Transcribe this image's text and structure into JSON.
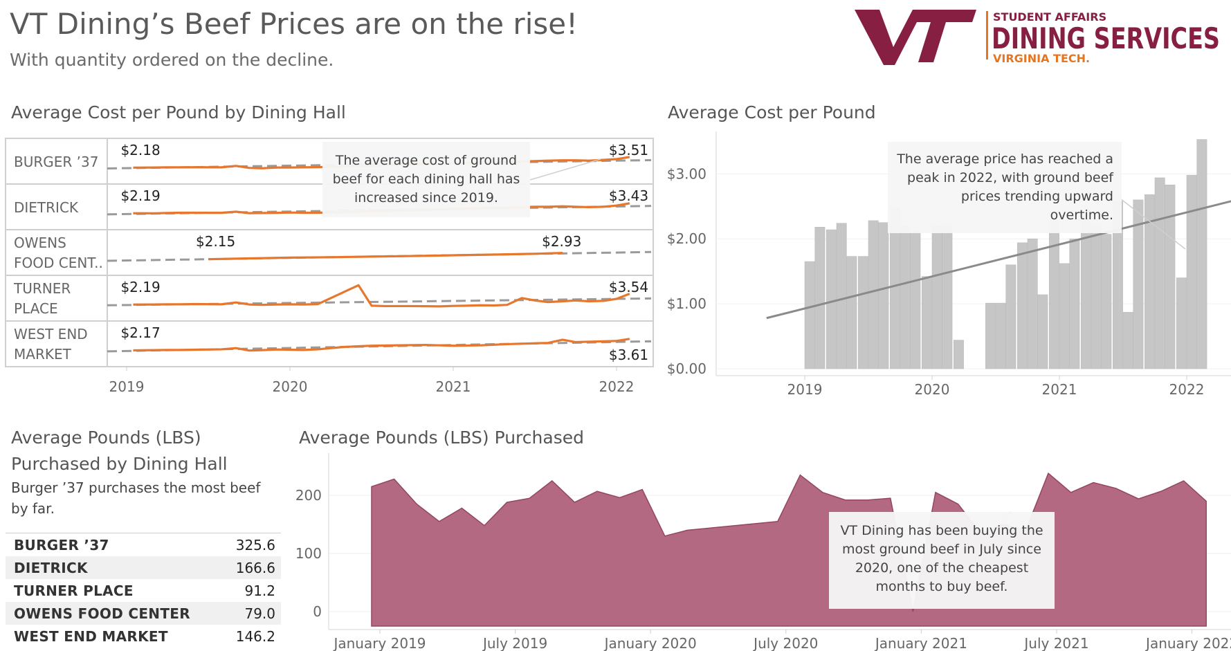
{
  "header": {
    "title": "VT Dining’s Beef Prices are on the rise!",
    "subtitle": "With quantity ordered on the decline.",
    "logo_small": "STUDENT AFFAIRS",
    "logo_big": "DINING SERVICES",
    "logo_sub": "VIRGINIA TECH."
  },
  "colors": {
    "orange": "#e8772e",
    "maroon": "#a54f6b",
    "logo": "#861f41",
    "bar": "#c6c6c6",
    "logo_rule": "#e5751f"
  },
  "panels": {
    "hall_cost_title": "Average Cost per Pound by Dining Hall",
    "cost_title": "Average Cost per Pound",
    "lbs_hall_title_1": "Average Pounds (LBS)",
    "lbs_hall_title_2": "Purchased by Dining Hall",
    "lbs_hall_subtitle_1": "Burger ’37 purchases the most beef",
    "lbs_hall_subtitle_2": "by far.",
    "lbs_title": "Average Pounds (LBS) Purchased"
  },
  "annotations": {
    "hall_note": [
      "The average cost of ground",
      "beef for each dining hall has",
      "increased since 2019."
    ],
    "cost_note": [
      "The average price has reached a",
      "peak in 2022, with ground beef",
      "prices trending upward",
      "overtime."
    ],
    "lbs_note": [
      "VT Dining has been buying the",
      "most ground beef in July since",
      "2020, one of the cheapest",
      "months to buy beef."
    ]
  },
  "chart_data": [
    {
      "type": "line",
      "title": "Average Cost per Pound by Dining Hall",
      "x_ticks": [
        "2019",
        "2020",
        "2021",
        "2022"
      ],
      "series": [
        {
          "name": "BURGER ’37",
          "row_label": [
            "BURGER ’37"
          ],
          "start_label": "$2.18",
          "end_label": "$3.51",
          "x": [
            2019.04,
            2019.17,
            2019.25,
            2019.33,
            2019.42,
            2019.58,
            2019.67,
            2019.75,
            2019.83,
            2019.92,
            2020.0,
            2020.08,
            2020.17,
            2021.42,
            2021.5,
            2021.58,
            2021.67,
            2021.75,
            2021.83,
            2021.92,
            2022.0,
            2022.08
          ],
          "y": [
            2.18,
            2.2,
            2.22,
            2.22,
            2.23,
            2.22,
            2.4,
            2.15,
            2.1,
            2.2,
            2.2,
            2.22,
            2.24,
            2.95,
            3.0,
            3.05,
            3.1,
            3.1,
            3.05,
            3.15,
            3.25,
            3.51
          ],
          "trend": [
            2.08,
            3.12
          ]
        },
        {
          "name": "DIETRICK",
          "row_label": [
            "DIETRICK"
          ],
          "start_label": "$2.19",
          "end_label": "$3.43",
          "x": [
            2019.04,
            2019.17,
            2019.25,
            2019.33,
            2019.42,
            2019.58,
            2019.67,
            2019.75,
            2019.83,
            2019.92,
            2020.0,
            2020.08,
            2020.17,
            2021.42,
            2021.5,
            2021.58,
            2021.67,
            2021.75,
            2021.83,
            2021.92,
            2022.0,
            2022.08
          ],
          "y": [
            2.19,
            2.18,
            2.22,
            2.25,
            2.25,
            2.24,
            2.38,
            2.2,
            2.22,
            2.24,
            2.28,
            2.25,
            2.25,
            2.95,
            3.0,
            3.0,
            3.05,
            3.0,
            2.95,
            3.0,
            3.15,
            3.43
          ],
          "trend": [
            2.05,
            3.1
          ]
        },
        {
          "name": "OWENS FOOD CENTER",
          "row_label": [
            "OWENS",
            "FOOD CENT.."
          ],
          "start_label": "$2.15",
          "end_label": "$2.93",
          "x": [
            2019.5,
            2019.75,
            2020.0,
            2020.25,
            2020.5,
            2020.75,
            2021.0,
            2021.25,
            2021.5,
            2021.67
          ],
          "y": [
            2.15,
            2.25,
            2.35,
            2.4,
            2.48,
            2.55,
            2.64,
            2.73,
            2.83,
            2.93
          ],
          "trend": [
            1.95,
            3.05
          ]
        },
        {
          "name": "TURNER PLACE",
          "row_label": [
            "TURNER",
            "PLACE"
          ],
          "start_label": "$2.19",
          "end_label": "$3.54",
          "x": [
            2019.04,
            2019.17,
            2019.25,
            2019.33,
            2019.42,
            2019.58,
            2019.67,
            2019.75,
            2019.83,
            2019.92,
            2020.0,
            2020.08,
            2020.17,
            2020.42,
            2020.5,
            2020.58,
            2020.67,
            2020.75,
            2020.83,
            2020.92,
            2021.0,
            2021.08,
            2021.17,
            2021.25,
            2021.33,
            2021.42,
            2021.5,
            2021.58,
            2021.67,
            2021.75,
            2021.83,
            2021.92,
            2022.0,
            2022.08
          ],
          "y": [
            2.19,
            2.2,
            2.22,
            2.22,
            2.25,
            2.22,
            2.45,
            2.2,
            2.15,
            2.2,
            2.22,
            2.2,
            2.24,
            4.6,
            2.05,
            2.0,
            2.0,
            2.0,
            1.98,
            1.96,
            2.02,
            2.05,
            2.1,
            2.08,
            2.15,
            3.0,
            2.7,
            2.5,
            2.6,
            2.7,
            2.6,
            2.65,
            2.9,
            3.54
          ],
          "trend": [
            2.1,
            2.95
          ]
        },
        {
          "name": "WEST END MARKET",
          "row_label": [
            "WEST END",
            "MARKET"
          ],
          "start_label": "$2.17",
          "end_label": "$3.61",
          "x": [
            2019.04,
            2019.17,
            2019.25,
            2019.33,
            2019.42,
            2019.58,
            2019.67,
            2019.75,
            2019.83,
            2019.92,
            2020.0,
            2020.08,
            2020.17,
            2020.33,
            2020.5,
            2020.67,
            2020.83,
            2021.0,
            2021.17,
            2021.33,
            2021.5,
            2021.58,
            2021.67,
            2021.75,
            2021.83,
            2021.92,
            2022.0,
            2022.08
          ],
          "y": [
            2.17,
            2.2,
            2.22,
            2.22,
            2.25,
            2.3,
            2.45,
            2.15,
            2.2,
            2.28,
            2.25,
            2.22,
            2.3,
            2.6,
            2.75,
            2.8,
            2.85,
            2.75,
            2.8,
            2.95,
            3.05,
            3.1,
            3.5,
            3.2,
            3.25,
            3.3,
            3.35,
            3.61
          ],
          "trend": [
            2.05,
            3.3
          ]
        }
      ]
    },
    {
      "type": "bar",
      "title": "Average Cost per Pound",
      "x_ticks": [
        "2019",
        "2020",
        "2021",
        "2022"
      ],
      "y_ticks": [
        "$0.00",
        "$1.00",
        "$2.00",
        "$3.00"
      ],
      "ylim": [
        0,
        3.6
      ],
      "x": [
        2019.0,
        2019.08,
        2019.17,
        2019.25,
        2019.33,
        2019.42,
        2019.5,
        2019.58,
        2019.67,
        2019.75,
        2019.83,
        2019.92,
        2020.0,
        2020.08,
        2020.17,
        2020.42,
        2020.5,
        2020.58,
        2020.67,
        2020.75,
        2020.83,
        2020.92,
        2021.0,
        2021.08,
        2021.17,
        2021.25,
        2021.33,
        2021.42,
        2021.5,
        2021.58,
        2021.67,
        2021.75,
        2021.83,
        2021.92,
        2022.0,
        2022.08
      ],
      "values": [
        1.65,
        2.18,
        2.14,
        2.24,
        1.73,
        1.73,
        2.28,
        2.25,
        2.48,
        2.2,
        2.11,
        1.42,
        2.2,
        2.21,
        0.44,
        1.01,
        1.01,
        1.6,
        1.94,
        2.0,
        1.14,
        2.29,
        1.62,
        2.0,
        2.31,
        2.22,
        2.07,
        2.58,
        0.87,
        2.6,
        2.68,
        2.94,
        2.83,
        1.4,
        2.98,
        3.53
      ],
      "trend": {
        "x": [
          2018.7,
          2022.35
        ],
        "y": [
          0.78,
          2.58
        ]
      }
    },
    {
      "type": "table",
      "title": "Average Pounds (LBS) Purchased by Dining Hall",
      "rows": [
        {
          "name": "BURGER ’37",
          "value": "325.6"
        },
        {
          "name": "DIETRICK",
          "value": "166.6"
        },
        {
          "name": "TURNER PLACE",
          "value": "91.2"
        },
        {
          "name": "OWENS FOOD CENTER",
          "value": "79.0"
        },
        {
          "name": "WEST END MARKET",
          "value": "146.2"
        }
      ]
    },
    {
      "type": "area",
      "title": "Average Pounds (LBS) Purchased",
      "x_ticks": [
        "January 2019",
        "July 2019",
        "January 2020",
        "July 2020",
        "January 2021",
        "July 2021",
        "January 2022"
      ],
      "y_ticks": [
        "0",
        "100",
        "200"
      ],
      "ylim": [
        -20,
        250
      ],
      "x_months": [
        0,
        1,
        2,
        3,
        4,
        5,
        6,
        7,
        8,
        9,
        10,
        11,
        12,
        13,
        14,
        18,
        19,
        20,
        21,
        22,
        23,
        24,
        25,
        26,
        27,
        28,
        29,
        30,
        31,
        32,
        33,
        34,
        35,
        36,
        37
      ],
      "values": [
        215,
        228,
        185,
        155,
        178,
        148,
        188,
        195,
        225,
        188,
        207,
        196,
        210,
        130,
        140,
        155,
        235,
        205,
        192,
        192,
        195,
        0,
        205,
        185,
        135,
        150,
        140,
        238,
        205,
        222,
        212,
        194,
        207,
        225,
        190
      ]
    }
  ]
}
